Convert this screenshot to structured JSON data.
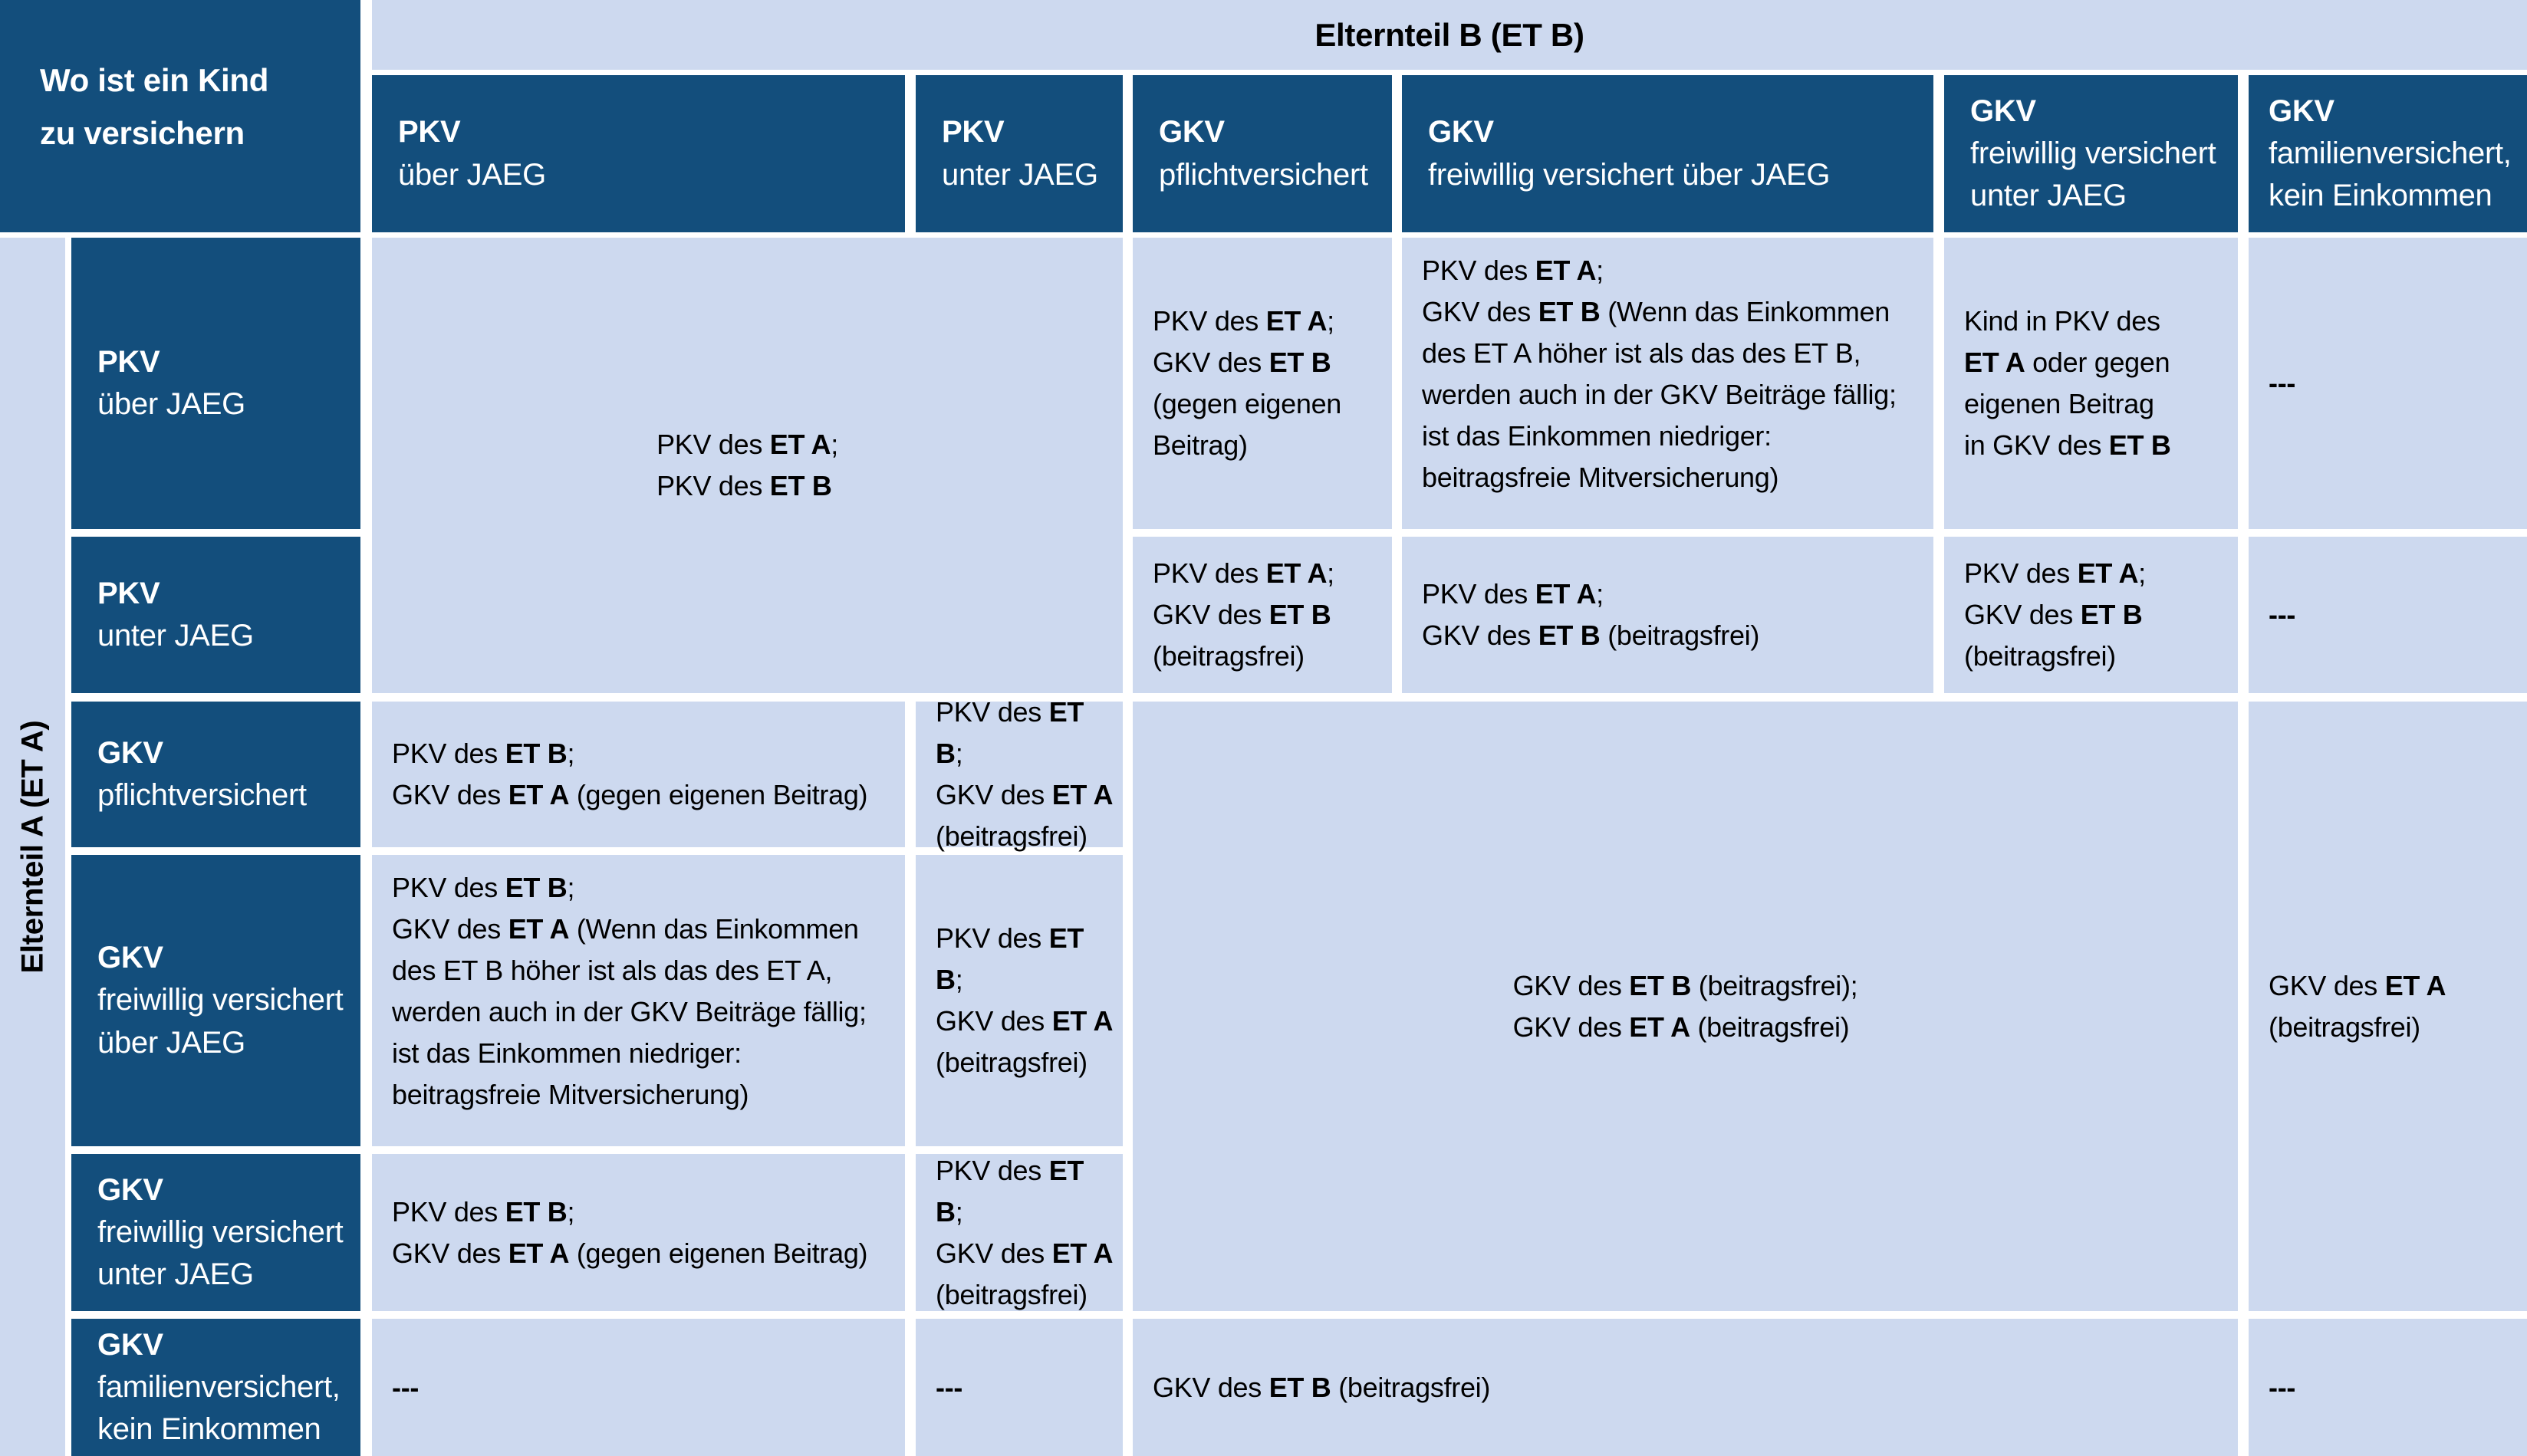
{
  "colors": {
    "header_blue": "#134e7c",
    "cell_blue": "#cdd9ef",
    "header_text": "#ffffff",
    "body_text": "#000000",
    "gap_white": "#ffffff"
  },
  "corner": {
    "title": "Wo ist ein Kind\nzu versichern"
  },
  "column_group": {
    "label": "Elternteil B (ET B)"
  },
  "row_group": {
    "label": "Elternteil A (ET A)"
  },
  "col_headers": [
    {
      "label": "**PKV**\nüber JAEG"
    },
    {
      "label": "**PKV**\nunter JAEG"
    },
    {
      "label": "**GKV**\npflichtversichert"
    },
    {
      "label": "**GKV**\nfreiwillig versichert über JAEG"
    },
    {
      "label": "**GKV**\nfreiwillig versichert\nunter JAEG"
    },
    {
      "label": "**GKV**\nfamilienversichert,\nkein Einkommen"
    }
  ],
  "row_headers": [
    {
      "label": "**PKV**\nüber JAEG"
    },
    {
      "label": "**PKV**\nunter JAEG"
    },
    {
      "label": "**GKV**\npflichtversichert"
    },
    {
      "label": "**GKV**\nfreiwillig versichert\nüber JAEG"
    },
    {
      "label": "**GKV**\nfreiwillig versichert\nunter JAEG"
    },
    {
      "label": "**GKV**\nfamilienversichert,\nkein Einkommen"
    }
  ],
  "cells": {
    "pkv_both": "PKV des **ET A**;\nPKV des **ET B**",
    "r1c3": "PKV des **ET A**;\nGKV des **ET B**\n(gegen eigenen\nBeitrag)",
    "r1c4": "PKV des **ET A**;\nGKV des **ET B** (Wenn das Einkommen des ET A höher ist als das des ET B, werden auch in der GKV Beiträge fällig; ist das Einkommen niedriger: beitragsfreie Mitversicherung)",
    "r1c5": "Kind in PKV des\n**ET A** oder gegen\neigenen Beitrag\nin GKV des **ET B**",
    "r1c6": "---",
    "r2c3": "PKV des **ET A**;\nGKV des **ET B**\n(beitragsfrei)",
    "r2c4": "PKV des **ET A**;\nGKV des **ET B** (beitragsfrei)",
    "r2c5": "PKV des **ET A**;\nGKV des **ET B**\n(beitragsfrei)",
    "r2c6": "---",
    "r3c1": "PKV des **ET B**;\nGKV des **ET A** (gegen eigenen Beitrag)",
    "r3c2": "PKV des **ET B**;\nGKV des **ET A**\n(beitragsfrei)",
    "mid_merged": "GKV des **ET B** (beitragsfrei);\nGKV des **ET A** (beitragsfrei)",
    "right_merged": "GKV des **ET A**\n(beitragsfrei)",
    "r4c1": "PKV des **ET B**;\nGKV des **ET A** (Wenn das Einkommen des ET B höher ist als das des ET A, werden auch in der GKV Beiträge fällig; ist das Einkommen niedriger: beitragsfreie Mitversicherung)",
    "r4c2": "PKV des **ET B**;\nGKV des **ET A**\n(beitragsfrei)",
    "r5c1": "PKV des **ET B**;\nGKV des **ET A** (gegen eigenen Beitrag)",
    "r5c2": "PKV des **ET B**;\nGKV des **ET A**\n(beitragsfrei)",
    "r6c1": "---",
    "r6c2": "---",
    "bottom_merged": "GKV des **ET B** (beitragsfrei)",
    "r6c6": "---"
  }
}
